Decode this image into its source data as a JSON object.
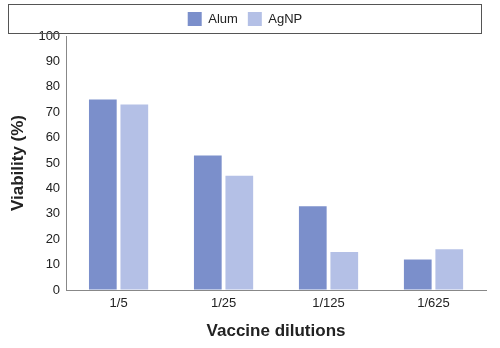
{
  "chart_data": {
    "type": "bar",
    "categories": [
      "1/5",
      "1/25",
      "1/125",
      "1/625"
    ],
    "series": [
      {
        "name": "Alum",
        "color": "#7b8fcb",
        "values": [
          75,
          53,
          33,
          12
        ]
      },
      {
        "name": "AgNP",
        "color": "#b4c0e6",
        "values": [
          73,
          45,
          15,
          16
        ]
      }
    ],
    "x_label": "Vaccine dilutions",
    "y_label": "Viability (%)",
    "ylim": [
      0,
      100
    ],
    "yticks": [
      0,
      10,
      20,
      30,
      40,
      50,
      60,
      70,
      80,
      90,
      100
    ],
    "grid": false,
    "legend": "top"
  }
}
